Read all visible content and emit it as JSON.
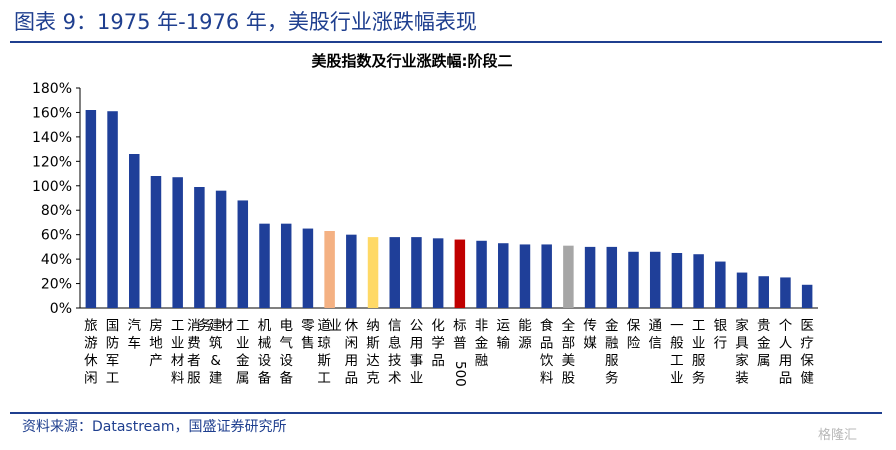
{
  "figure": {
    "title": "图表 9：1975 年-1976 年，美股行业涨跌幅表现",
    "source": "资料来源：Datastream，国盛证券研究所",
    "watermark": "格隆汇"
  },
  "colors": {
    "default_bar": "#1f3f99",
    "highlight_bars": {
      "道琼斯工业": "#f4b183",
      "纳斯达克": "#ffd966",
      "标普500": "#c00000",
      "全部美股": "#a6a6a6"
    },
    "header_text": "#1f3f8f"
  },
  "chart_data": {
    "type": "bar",
    "title": "美股指数及行业涨跌幅:阶段二",
    "xlabel": "",
    "ylabel": "",
    "ylim": [
      0,
      180
    ],
    "y_unit": "%",
    "yticks": [
      "0%",
      "20%",
      "40%",
      "60%",
      "80%",
      "100%",
      "120%",
      "140%",
      "160%",
      "180%"
    ],
    "grid": false,
    "legend": "none",
    "categories": [
      "旅游休闲",
      "国防军工",
      "汽车",
      "房地产",
      "工业材料",
      "消费者服务",
      "建筑&建材",
      "工业金属",
      "机械设备",
      "电气设备",
      "零售",
      "道琼斯工业",
      "休闲用品",
      "纳斯达克",
      "信息技术",
      "公用事业",
      "化学品",
      "标普500",
      "非金融",
      "运输",
      "能源",
      "食品饮料",
      "全部美股",
      "传媒",
      "金融服务",
      "保险",
      "通信",
      "一般工业",
      "工业服务",
      "银行",
      "家具家装",
      "贵金属",
      "个人用品",
      "医疗保健"
    ],
    "values": [
      162,
      161,
      126,
      108,
      107,
      99,
      96,
      88,
      69,
      69,
      65,
      63,
      60,
      58,
      58,
      58,
      57,
      56,
      55,
      53,
      52,
      52,
      51,
      50,
      50,
      46,
      46,
      45,
      44,
      38,
      29,
      26,
      25,
      19
    ]
  }
}
